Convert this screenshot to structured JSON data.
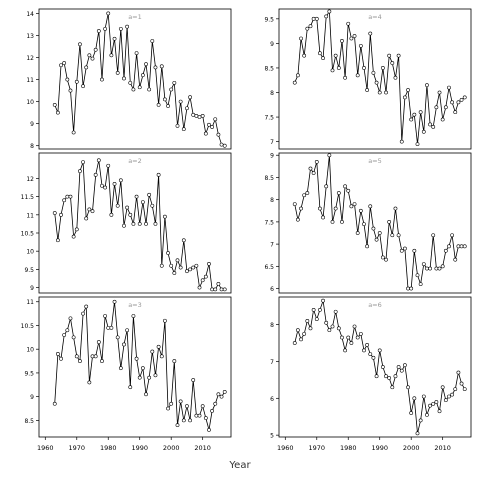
{
  "figure": {
    "xlabel": "Year"
  },
  "chart_data": [
    {
      "type": "line",
      "panel_label": "a=1",
      "xlim": [
        1958,
        2019
      ],
      "ylim": [
        7.85,
        14.2
      ],
      "yticks": [
        8,
        9,
        10,
        11,
        12,
        13,
        14
      ],
      "xticks": [],
      "xticklabels": [],
      "x": [
        1963,
        1964,
        1965,
        1966,
        1967,
        1968,
        1969,
        1970,
        1971,
        1972,
        1973,
        1974,
        1975,
        1976,
        1977,
        1978,
        1979,
        1980,
        1981,
        1982,
        1983,
        1984,
        1985,
        1986,
        1987,
        1988,
        1989,
        1990,
        1991,
        1992,
        1993,
        1994,
        1995,
        1996,
        1997,
        1998,
        1999,
        2000,
        2001,
        2002,
        2003,
        2004,
        2005,
        2006,
        2007,
        2008,
        2009,
        2010,
        2011,
        2012,
        2013,
        2014,
        2015,
        2016,
        2017
      ],
      "y": [
        9.85,
        9.5,
        11.65,
        11.75,
        11.0,
        10.5,
        8.6,
        10.9,
        12.6,
        10.7,
        11.55,
        12.1,
        11.95,
        12.35,
        13.2,
        11.0,
        13.3,
        14.0,
        12.1,
        12.85,
        11.3,
        13.3,
        11.05,
        13.4,
        10.85,
        10.55,
        12.2,
        10.65,
        11.2,
        11.7,
        10.55,
        12.75,
        11.55,
        9.85,
        11.6,
        10.1,
        9.8,
        10.55,
        10.85,
        8.9,
        10.0,
        8.75,
        9.7,
        10.2,
        9.4,
        9.35,
        9.3,
        9.35,
        8.55,
        8.95,
        8.85,
        9.2,
        8.5,
        8.05,
        8.0
      ]
    },
    {
      "type": "line",
      "panel_label": "a=4",
      "xlim": [
        1958,
        2019
      ],
      "ylim": [
        6.85,
        9.7
      ],
      "yticks": [
        7.0,
        7.5,
        8.0,
        8.5,
        9.0,
        9.5
      ],
      "xticks": [],
      "xticklabels": [],
      "x": [
        1963,
        1964,
        1965,
        1966,
        1967,
        1968,
        1969,
        1970,
        1971,
        1972,
        1973,
        1974,
        1975,
        1976,
        1977,
        1978,
        1979,
        1980,
        1981,
        1982,
        1983,
        1984,
        1985,
        1986,
        1987,
        1988,
        1989,
        1990,
        1991,
        1992,
        1993,
        1994,
        1995,
        1996,
        1997,
        1998,
        1999,
        2000,
        2001,
        2002,
        2003,
        2004,
        2005,
        2006,
        2007,
        2008,
        2009,
        2010,
        2011,
        2012,
        2013,
        2014,
        2015,
        2016,
        2017
      ],
      "y": [
        8.2,
        8.35,
        9.1,
        8.75,
        9.3,
        9.35,
        9.5,
        9.5,
        8.8,
        8.7,
        9.55,
        9.65,
        8.45,
        8.75,
        8.5,
        9.05,
        8.3,
        9.4,
        9.1,
        9.15,
        8.35,
        8.95,
        8.5,
        8.05,
        9.2,
        8.4,
        8.2,
        8.0,
        8.5,
        8.0,
        8.75,
        8.6,
        8.3,
        8.75,
        7.0,
        7.9,
        8.05,
        7.45,
        7.55,
        6.95,
        7.6,
        7.2,
        8.15,
        7.35,
        7.3,
        7.7,
        8.0,
        7.45,
        7.7,
        8.1,
        7.8,
        7.6,
        7.8,
        7.85,
        7.9
      ]
    },
    {
      "type": "line",
      "panel_label": "a=2",
      "xlim": [
        1958,
        2019
      ],
      "ylim": [
        8.85,
        12.7
      ],
      "yticks": [
        9.0,
        9.5,
        10.0,
        10.5,
        11.0,
        11.5,
        12.0
      ],
      "xticks": [],
      "xticklabels": [],
      "x": [
        1963,
        1964,
        1965,
        1966,
        1967,
        1968,
        1969,
        1970,
        1971,
        1972,
        1973,
        1974,
        1975,
        1976,
        1977,
        1978,
        1979,
        1980,
        1981,
        1982,
        1983,
        1984,
        1985,
        1986,
        1987,
        1988,
        1989,
        1990,
        1991,
        1992,
        1993,
        1994,
        1995,
        1996,
        1997,
        1998,
        1999,
        2000,
        2001,
        2002,
        2003,
        2004,
        2005,
        2006,
        2007,
        2008,
        2009,
        2010,
        2011,
        2012,
        2013,
        2014,
        2015,
        2016,
        2017
      ],
      "y": [
        11.05,
        10.3,
        11.0,
        11.4,
        11.5,
        11.5,
        10.4,
        10.6,
        12.2,
        12.45,
        10.9,
        11.15,
        11.1,
        12.1,
        12.5,
        11.8,
        11.75,
        12.35,
        11.0,
        11.85,
        11.25,
        11.95,
        10.7,
        11.2,
        11.0,
        10.75,
        11.5,
        10.75,
        11.35,
        10.75,
        11.55,
        11.25,
        10.75,
        12.1,
        9.6,
        10.95,
        9.95,
        9.6,
        9.4,
        9.75,
        9.55,
        10.3,
        9.45,
        9.5,
        9.55,
        9.6,
        9.0,
        9.2,
        9.3,
        9.65,
        8.95,
        8.95,
        9.1,
        8.95,
        8.95
      ]
    },
    {
      "type": "line",
      "panel_label": "a=5",
      "xlim": [
        1958,
        2019
      ],
      "ylim": [
        5.9,
        9.05
      ],
      "yticks": [
        6.0,
        6.5,
        7.0,
        7.5,
        8.0,
        8.5,
        9.0
      ],
      "xticks": [],
      "xticklabels": [],
      "x": [
        1963,
        1964,
        1965,
        1966,
        1967,
        1968,
        1969,
        1970,
        1971,
        1972,
        1973,
        1974,
        1975,
        1976,
        1977,
        1978,
        1979,
        1980,
        1981,
        1982,
        1983,
        1984,
        1985,
        1986,
        1987,
        1988,
        1989,
        1990,
        1991,
        1992,
        1993,
        1994,
        1995,
        1996,
        1997,
        1998,
        1999,
        2000,
        2001,
        2002,
        2003,
        2004,
        2005,
        2006,
        2007,
        2008,
        2009,
        2010,
        2011,
        2012,
        2013,
        2014,
        2015,
        2016,
        2017
      ],
      "y": [
        7.9,
        7.55,
        7.8,
        8.1,
        8.15,
        8.7,
        8.6,
        8.85,
        7.8,
        7.6,
        8.3,
        9.0,
        7.5,
        7.8,
        8.15,
        7.5,
        8.3,
        8.2,
        7.85,
        7.9,
        7.25,
        7.75,
        7.45,
        6.95,
        7.85,
        7.35,
        7.1,
        7.25,
        6.7,
        6.65,
        7.5,
        7.2,
        7.8,
        7.2,
        6.85,
        6.9,
        6.0,
        6.0,
        6.85,
        6.3,
        6.1,
        6.55,
        6.45,
        6.45,
        7.2,
        6.45,
        6.45,
        6.5,
        6.85,
        6.95,
        7.2,
        6.65,
        6.95,
        6.95,
        6.95
      ]
    },
    {
      "type": "line",
      "panel_label": "a=3",
      "xlim": [
        1958,
        2019
      ],
      "ylim": [
        8.15,
        11.1
      ],
      "yticks": [
        8.5,
        9.0,
        9.5,
        10.0,
        10.5,
        11.0
      ],
      "xticks": [
        1960,
        1970,
        1980,
        1990,
        2000,
        2010
      ],
      "xticklabels": [
        "1960",
        "1970",
        "1980",
        "1990",
        "2000",
        "2010"
      ],
      "x": [
        1963,
        1964,
        1965,
        1966,
        1967,
        1968,
        1969,
        1970,
        1971,
        1972,
        1973,
        1974,
        1975,
        1976,
        1977,
        1978,
        1979,
        1980,
        1981,
        1982,
        1983,
        1984,
        1985,
        1986,
        1987,
        1988,
        1989,
        1990,
        1991,
        1992,
        1993,
        1994,
        1995,
        1996,
        1997,
        1998,
        1999,
        2000,
        2001,
        2002,
        2003,
        2004,
        2005,
        2006,
        2007,
        2008,
        2009,
        2010,
        2011,
        2012,
        2013,
        2014,
        2015,
        2016,
        2017
      ],
      "y": [
        8.85,
        9.9,
        9.8,
        10.3,
        10.4,
        10.65,
        10.25,
        9.85,
        9.75,
        10.75,
        10.9,
        9.3,
        9.85,
        9.85,
        10.15,
        9.75,
        10.7,
        10.45,
        10.45,
        11.0,
        10.25,
        9.6,
        10.1,
        10.4,
        9.2,
        10.7,
        9.8,
        9.4,
        9.6,
        9.05,
        9.4,
        9.95,
        9.45,
        10.05,
        9.85,
        10.6,
        8.75,
        8.85,
        9.75,
        8.4,
        8.9,
        8.5,
        8.8,
        8.5,
        9.35,
        8.6,
        8.6,
        8.8,
        8.55,
        8.3,
        8.7,
        8.85,
        9.05,
        9.0,
        9.1
      ]
    },
    {
      "type": "line",
      "panel_label": "a=6",
      "xlim": [
        1958,
        2019
      ],
      "ylim": [
        4.95,
        8.75
      ],
      "yticks": [
        5,
        6,
        7,
        8
      ],
      "xticks": [
        1960,
        1970,
        1980,
        1990,
        2000,
        2010
      ],
      "xticklabels": [
        "1960",
        "1970",
        "1980",
        "1990",
        "2000",
        "2010"
      ],
      "x": [
        1963,
        1964,
        1965,
        1966,
        1967,
        1968,
        1969,
        1970,
        1971,
        1972,
        1973,
        1974,
        1975,
        1976,
        1977,
        1978,
        1979,
        1980,
        1981,
        1982,
        1983,
        1984,
        1985,
        1986,
        1987,
        1988,
        1989,
        1990,
        1991,
        1992,
        1993,
        1994,
        1995,
        1996,
        1997,
        1998,
        1999,
        2000,
        2001,
        2002,
        2003,
        2004,
        2005,
        2006,
        2007,
        2008,
        2009,
        2010,
        2011,
        2012,
        2013,
        2014,
        2015,
        2016,
        2017
      ],
      "y": [
        7.5,
        7.85,
        7.6,
        7.75,
        8.1,
        7.9,
        8.4,
        8.15,
        8.4,
        8.65,
        8.05,
        7.85,
        7.95,
        8.35,
        7.9,
        7.65,
        7.3,
        7.65,
        7.5,
        7.95,
        7.65,
        7.75,
        7.3,
        7.45,
        7.2,
        7.1,
        6.6,
        7.3,
        6.85,
        6.6,
        6.55,
        6.3,
        6.6,
        6.85,
        6.75,
        6.9,
        6.3,
        5.6,
        6.0,
        5.05,
        5.4,
        6.05,
        5.55,
        5.8,
        5.85,
        5.9,
        5.65,
        6.3,
        5.95,
        6.05,
        6.1,
        6.25,
        6.7,
        6.4,
        6.25
      ]
    }
  ]
}
